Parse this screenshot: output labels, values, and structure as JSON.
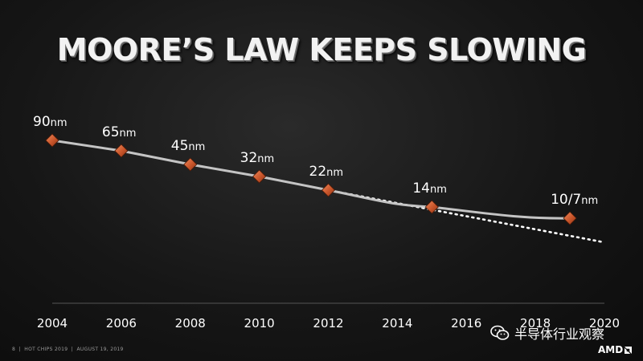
{
  "slide": {
    "title": "MOORE’S LAW KEEPS SLOWING",
    "footer": {
      "page_number": "8",
      "event": "HOT CHIPS 2019",
      "date": "AUGUST 19, 2019"
    },
    "brand": "AMD",
    "watermark": "半导体行业观察"
  },
  "colors": {
    "line": "#c4c4c4",
    "marker": "#d2643a",
    "trend": "#ffffff",
    "text": "#ffffff"
  },
  "chart_data": {
    "type": "line",
    "title": "",
    "xlabel": "",
    "ylabel": "",
    "x_ticks": [
      2004,
      2006,
      2008,
      2010,
      2012,
      2014,
      2016,
      2018,
      2020
    ],
    "xlim": [
      2004,
      2020
    ],
    "points": [
      {
        "x": 2004.0,
        "label": "90nm"
      },
      {
        "x": 2006.0,
        "label": "65nm"
      },
      {
        "x": 2008.0,
        "label": "45nm"
      },
      {
        "x": 2010.0,
        "label": "32nm"
      },
      {
        "x": 2012.0,
        "label": "22nm"
      },
      {
        "x": 2015.0,
        "label": "14nm"
      },
      {
        "x": 2019.0,
        "label": "10/7nm"
      }
    ],
    "trend_extrapolation": {
      "style": "dotted",
      "from_x": 2012,
      "to_x": 2020
    },
    "grid": false,
    "legend": "none"
  }
}
